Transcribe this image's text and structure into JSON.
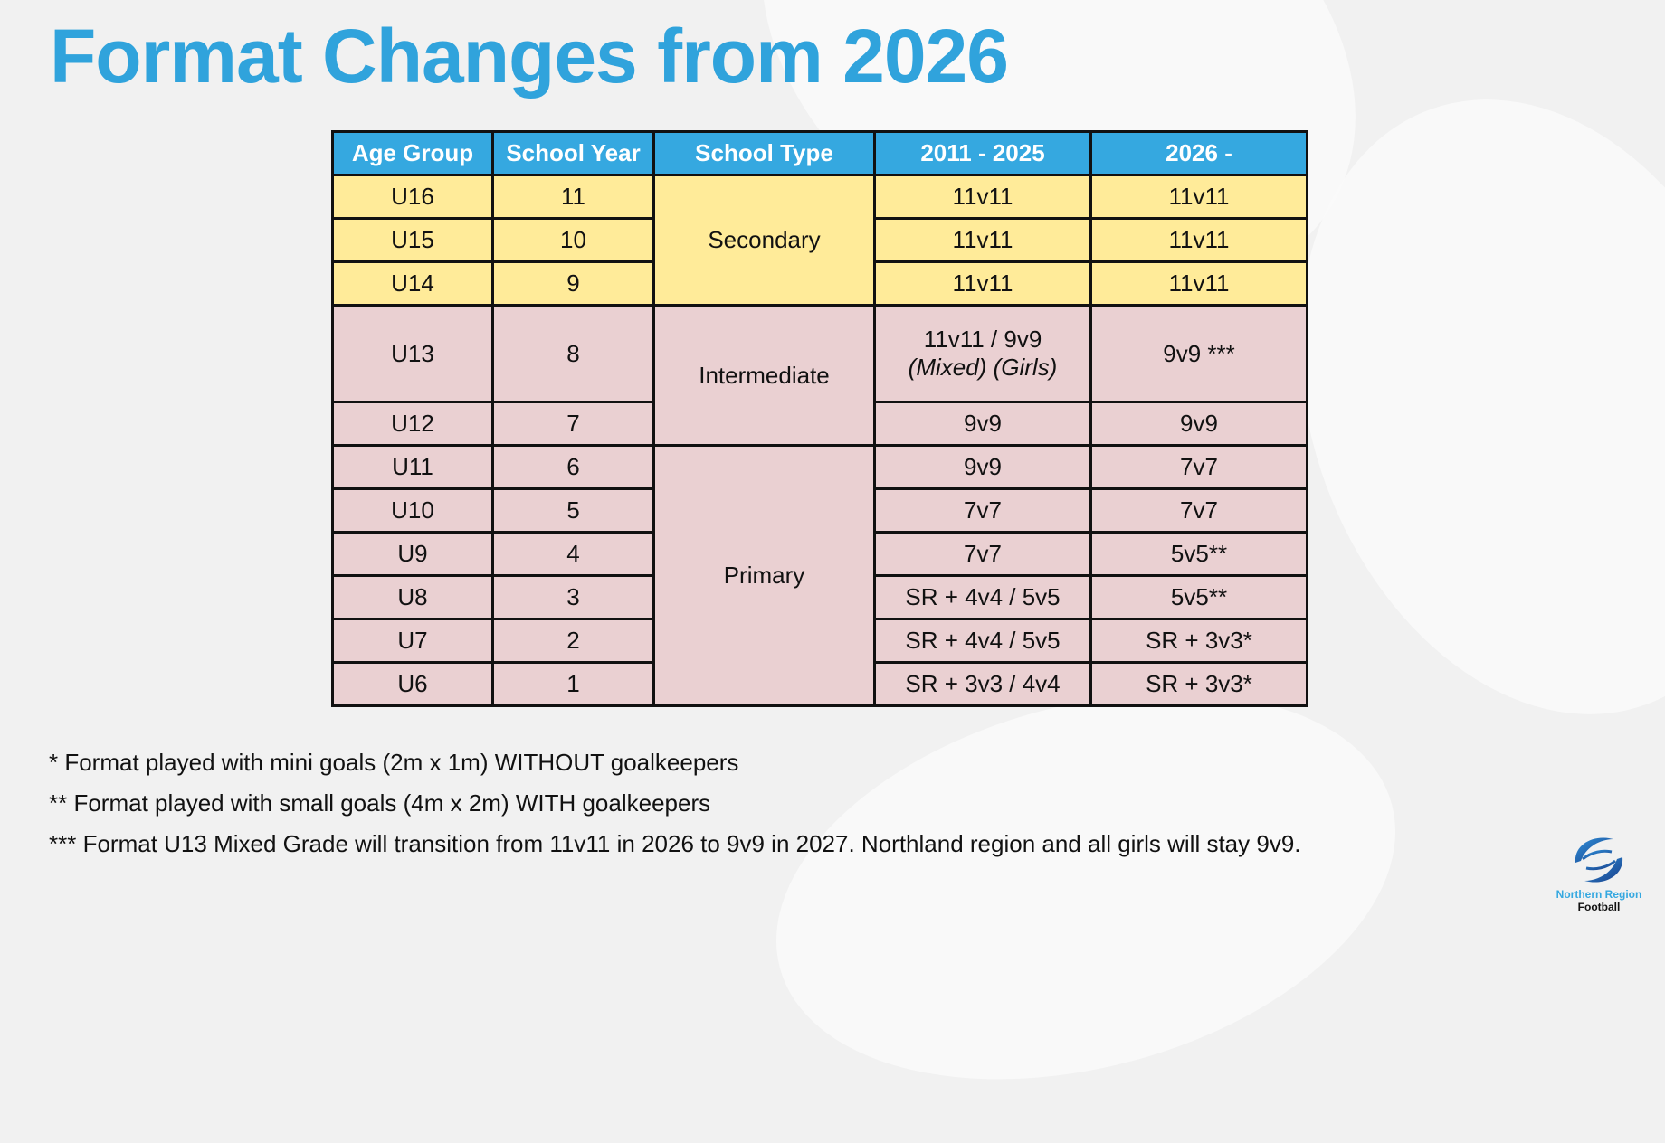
{
  "title": "Format Changes from 2026",
  "table": {
    "headers": [
      "Age Group",
      "School Year",
      "School Type",
      "2011 - 2025",
      "2026 -"
    ],
    "school_types": [
      "Secondary",
      "Intermediate",
      "Primary"
    ],
    "rows": [
      {
        "age": "U16",
        "year": "11",
        "old": "11v11",
        "new": "11v11"
      },
      {
        "age": "U15",
        "year": "10",
        "old": "11v11",
        "new": "11v11"
      },
      {
        "age": "U14",
        "year": "9",
        "old": "11v11",
        "new": "11v11"
      },
      {
        "age": "U13",
        "year": "8",
        "old": "11v11 / 9v9",
        "old_sub": "(Mixed)  (Girls)",
        "new": "9v9 ***"
      },
      {
        "age": "U12",
        "year": "7",
        "old": "9v9",
        "new": "9v9"
      },
      {
        "age": "U11",
        "year": "6",
        "old": "9v9",
        "new": "7v7"
      },
      {
        "age": "U10",
        "year": "5",
        "old": "7v7",
        "new": "7v7"
      },
      {
        "age": "U9",
        "year": "4",
        "old": "7v7",
        "new": "5v5**"
      },
      {
        "age": "U8",
        "year": "3",
        "old": "SR + 4v4 / 5v5",
        "new": "5v5**"
      },
      {
        "age": "U7",
        "year": "2",
        "old": "SR + 4v4 / 5v5",
        "new": "SR + 3v3*"
      },
      {
        "age": "U6",
        "year": "1",
        "old": "SR + 3v3 / 4v4",
        "new": "SR + 3v3*"
      }
    ]
  },
  "notes": [
    "* Format played with mini goals (2m x 1m) WITHOUT goalkeepers",
    "** Format played with small goals (4m x 2m) WITH goalkeepers",
    "*** Format U13 Mixed Grade will transition from 11v11 in 2026 to 9v9 in 2027.  Northland region and all girls will stay 9v9."
  ],
  "logo": {
    "line1": "Northern Region",
    "line2": "Football"
  },
  "colors": {
    "title": "#30a3dc",
    "header": "#35a8e0",
    "secondary": "#ffeb99",
    "other": "#ead0d2"
  }
}
